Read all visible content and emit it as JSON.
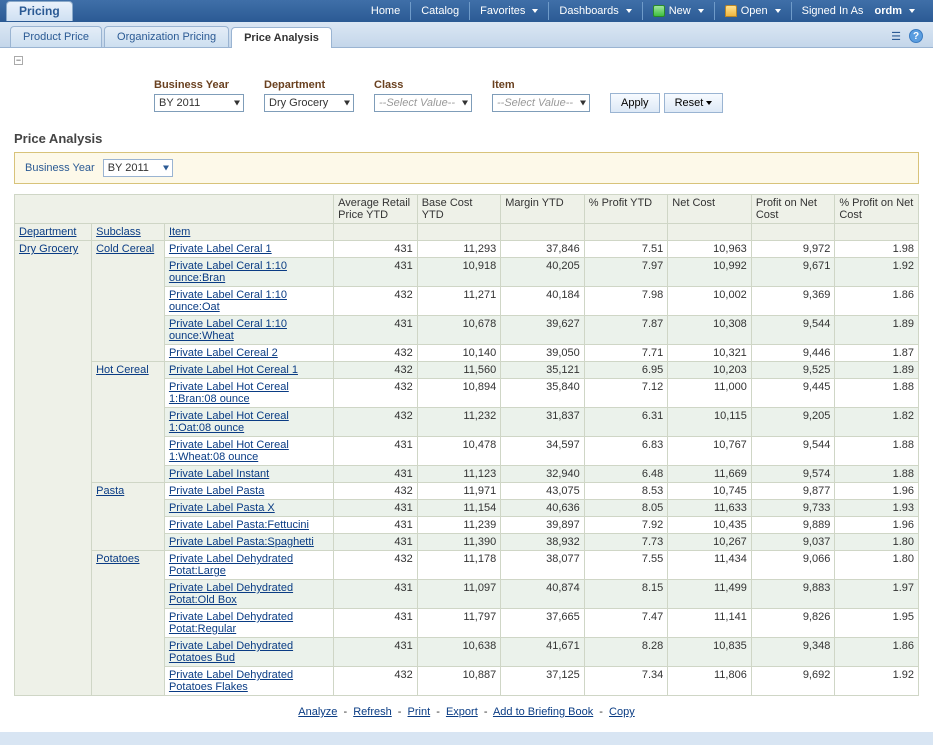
{
  "module": "Pricing",
  "topnav": {
    "home": "Home",
    "catalog": "Catalog",
    "favorites": "Favorites",
    "dashboards": "Dashboards",
    "new": "New",
    "open": "Open",
    "signedin_prefix": "Signed In As",
    "user": "ordm"
  },
  "tabs": {
    "product_price": "Product Price",
    "org_pricing": "Organization Pricing",
    "price_analysis": "Price Analysis"
  },
  "filters": {
    "business_year": {
      "label": "Business Year",
      "value": "BY 2011"
    },
    "department": {
      "label": "Department",
      "value": "Dry Grocery"
    },
    "class": {
      "label": "Class",
      "placeholder": "--Select Value--"
    },
    "item": {
      "label": "Item",
      "placeholder": "--Select Value--"
    },
    "apply": "Apply",
    "reset": "Reset"
  },
  "section_title": "Price Analysis",
  "banner": {
    "label": "Business Year",
    "value": "BY 2011"
  },
  "columns": {
    "department": "Department",
    "subclass": "Subclass",
    "item": "Item",
    "m1": "Average Retail Price YTD",
    "m2": "Base Cost YTD",
    "m3": "Margin YTD",
    "m4": "% Profit YTD",
    "m5": "Net Cost",
    "m6": "Profit on Net Cost",
    "m7": "% Profit on Net Cost"
  },
  "department_value": "Dry Grocery",
  "groups": [
    {
      "subclass": "Cold Cereal",
      "rows": [
        {
          "item": "Private Label Ceral 1",
          "m1": "431",
          "m2": "11,293",
          "m3": "37,846",
          "m4": "7.51",
          "m5": "10,963",
          "m6": "9,972",
          "m7": "1.98",
          "alt": false
        },
        {
          "item": "Private Label Ceral 1:10 ounce:Bran",
          "m1": "431",
          "m2": "10,918",
          "m3": "40,205",
          "m4": "7.97",
          "m5": "10,992",
          "m6": "9,671",
          "m7": "1.92",
          "alt": true
        },
        {
          "item": "Private Label Ceral 1:10 ounce:Oat",
          "m1": "432",
          "m2": "11,271",
          "m3": "40,184",
          "m4": "7.98",
          "m5": "10,002",
          "m6": "9,369",
          "m7": "1.86",
          "alt": false
        },
        {
          "item": "Private Label Ceral 1:10 ounce:Wheat",
          "m1": "431",
          "m2": "10,678",
          "m3": "39,627",
          "m4": "7.87",
          "m5": "10,308",
          "m6": "9,544",
          "m7": "1.89",
          "alt": true
        },
        {
          "item": "Private Label Cereal 2",
          "m1": "432",
          "m2": "10,140",
          "m3": "39,050",
          "m4": "7.71",
          "m5": "10,321",
          "m6": "9,446",
          "m7": "1.87",
          "alt": false
        }
      ]
    },
    {
      "subclass": "Hot Cereal",
      "rows": [
        {
          "item": "Private Label Hot Cereal 1",
          "m1": "432",
          "m2": "11,560",
          "m3": "35,121",
          "m4": "6.95",
          "m5": "10,203",
          "m6": "9,525",
          "m7": "1.89",
          "alt": true
        },
        {
          "item": "Private Label Hot Cereal 1:Bran:08 ounce",
          "m1": "432",
          "m2": "10,894",
          "m3": "35,840",
          "m4": "7.12",
          "m5": "11,000",
          "m6": "9,445",
          "m7": "1.88",
          "alt": false
        },
        {
          "item": "Private Label Hot Cereal 1:Oat:08 ounce",
          "m1": "432",
          "m2": "11,232",
          "m3": "31,837",
          "m4": "6.31",
          "m5": "10,115",
          "m6": "9,205",
          "m7": "1.82",
          "alt": true
        },
        {
          "item": "Private Label Hot Cereal 1:Wheat:08 ounce",
          "m1": "431",
          "m2": "10,478",
          "m3": "34,597",
          "m4": "6.83",
          "m5": "10,767",
          "m6": "9,544",
          "m7": "1.88",
          "alt": false
        },
        {
          "item": "Private Label Instant",
          "m1": "431",
          "m2": "11,123",
          "m3": "32,940",
          "m4": "6.48",
          "m5": "11,669",
          "m6": "9,574",
          "m7": "1.88",
          "alt": true
        }
      ]
    },
    {
      "subclass": "Pasta",
      "rows": [
        {
          "item": "Private Label Pasta",
          "m1": "432",
          "m2": "11,971",
          "m3": "43,075",
          "m4": "8.53",
          "m5": "10,745",
          "m6": "9,877",
          "m7": "1.96",
          "alt": false
        },
        {
          "item": "Private Label Pasta X",
          "m1": "431",
          "m2": "11,154",
          "m3": "40,636",
          "m4": "8.05",
          "m5": "11,633",
          "m6": "9,733",
          "m7": "1.93",
          "alt": true
        },
        {
          "item": "Private Label Pasta:Fettucini",
          "m1": "431",
          "m2": "11,239",
          "m3": "39,897",
          "m4": "7.92",
          "m5": "10,435",
          "m6": "9,889",
          "m7": "1.96",
          "alt": false
        },
        {
          "item": "Private Label Pasta:Spaghetti",
          "m1": "431",
          "m2": "11,390",
          "m3": "38,932",
          "m4": "7.73",
          "m5": "10,267",
          "m6": "9,037",
          "m7": "1.80",
          "alt": true
        }
      ]
    },
    {
      "subclass": "Potatoes",
      "rows": [
        {
          "item": "Private Label Dehydrated Potat:Large",
          "m1": "432",
          "m2": "11,178",
          "m3": "38,077",
          "m4": "7.55",
          "m5": "11,434",
          "m6": "9,066",
          "m7": "1.80",
          "alt": false
        },
        {
          "item": "Private Label Dehydrated Potat:Old Box",
          "m1": "431",
          "m2": "11,097",
          "m3": "40,874",
          "m4": "8.15",
          "m5": "11,499",
          "m6": "9,883",
          "m7": "1.97",
          "alt": true
        },
        {
          "item": "Private Label Dehydrated Potat:Regular",
          "m1": "431",
          "m2": "11,797",
          "m3": "37,665",
          "m4": "7.47",
          "m5": "11,141",
          "m6": "9,826",
          "m7": "1.95",
          "alt": false
        },
        {
          "item": "Private Label Dehydrated Potatoes Bud",
          "m1": "431",
          "m2": "10,638",
          "m3": "41,671",
          "m4": "8.28",
          "m5": "10,835",
          "m6": "9,348",
          "m7": "1.86",
          "alt": true
        },
        {
          "item": "Private Label Dehydrated Potatoes Flakes",
          "m1": "432",
          "m2": "10,887",
          "m3": "37,125",
          "m4": "7.34",
          "m5": "11,806",
          "m6": "9,692",
          "m7": "1.92",
          "alt": false
        }
      ]
    }
  ],
  "links": {
    "analyze": "Analyze",
    "refresh": "Refresh",
    "print": "Print",
    "export": "Export",
    "briefing": "Add to Briefing Book",
    "copy": "Copy"
  }
}
